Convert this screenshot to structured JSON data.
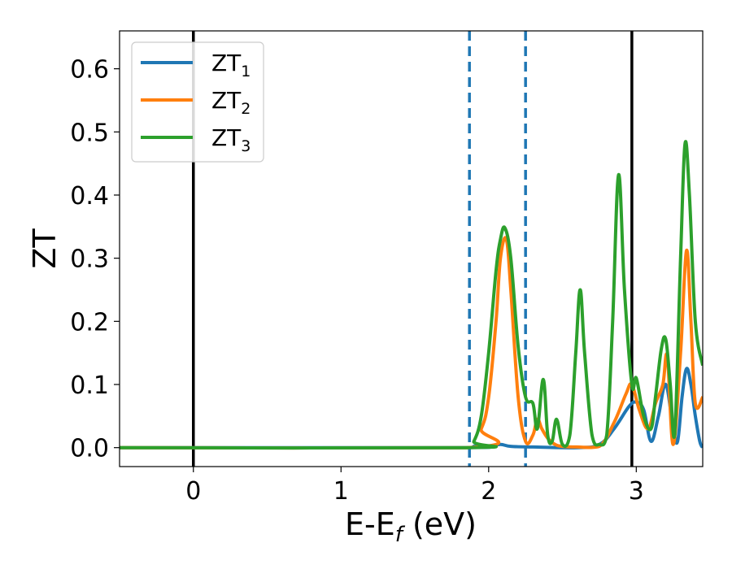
{
  "chart_data": {
    "type": "line",
    "title": "",
    "xlabel": {
      "main": "E-E",
      "sub": "f",
      "tail": " (eV)"
    },
    "ylabel": "ZT",
    "xlim": [
      -0.5,
      3.45
    ],
    "ylim": [
      -0.03,
      0.66
    ],
    "x_ticks": [
      0,
      1,
      2,
      3
    ],
    "y_ticks": [
      0.0,
      0.1,
      0.2,
      0.3,
      0.4,
      0.5,
      0.6
    ],
    "x_tick_labels": [
      "0",
      "1",
      "2",
      "3"
    ],
    "y_tick_labels": [
      "0.0",
      "0.1",
      "0.2",
      "0.3",
      "0.4",
      "0.5",
      "0.6"
    ],
    "grid": false,
    "legend_position": "top-left",
    "vlines": [
      {
        "x": 0.0,
        "style": "solid",
        "color": "#000000"
      },
      {
        "x": 1.87,
        "style": "dashed",
        "color": "#1f77b4"
      },
      {
        "x": 2.25,
        "style": "dashed",
        "color": "#1f77b4"
      },
      {
        "x": 2.97,
        "style": "solid",
        "color": "#000000"
      }
    ],
    "series": [
      {
        "name": "ZT",
        "sub": "1",
        "color": "#1f77b4",
        "x": [
          -0.5,
          1.8,
          1.9,
          2.0,
          2.08,
          2.15,
          2.3,
          2.6,
          2.75,
          2.85,
          2.95,
          3.0,
          3.05,
          3.1,
          3.15,
          3.2,
          3.25,
          3.28,
          3.31,
          3.34,
          3.37,
          3.4,
          3.43,
          3.45
        ],
        "y": [
          0.0,
          0.0,
          0.002,
          0.002,
          0.005,
          0.002,
          0.001,
          0.0,
          0.005,
          0.03,
          0.065,
          0.072,
          0.06,
          0.01,
          0.05,
          0.1,
          0.03,
          0.01,
          0.08,
          0.125,
          0.1,
          0.05,
          0.01,
          0.0
        ]
      },
      {
        "name": "ZT",
        "sub": "2",
        "color": "#ff7f0e",
        "x": [
          -0.5,
          1.85,
          1.95,
          2.0,
          2.05,
          2.08,
          2.12,
          2.15,
          2.2,
          2.25,
          2.3,
          2.33,
          2.36,
          2.4,
          2.45,
          2.5,
          2.6,
          2.75,
          2.85,
          2.93,
          2.97,
          3.02,
          3.08,
          3.13,
          3.18,
          3.21,
          3.25,
          3.3,
          3.34,
          3.37,
          3.4,
          3.45
        ],
        "y": [
          0.0,
          0.0,
          0.03,
          0.08,
          0.2,
          0.3,
          0.33,
          0.25,
          0.08,
          0.01,
          0.02,
          0.045,
          0.03,
          0.015,
          0.005,
          0.002,
          0.001,
          0.002,
          0.04,
          0.085,
          0.1,
          0.06,
          0.03,
          0.07,
          0.1,
          0.145,
          0.005,
          0.15,
          0.312,
          0.2,
          0.07,
          0.08
        ]
      },
      {
        "name": "ZT",
        "sub": "3",
        "color": "#2ca02c",
        "x": [
          -0.5,
          1.85,
          1.9,
          1.95,
          2.0,
          2.05,
          2.08,
          2.11,
          2.15,
          2.2,
          2.25,
          2.3,
          2.33,
          2.37,
          2.4,
          2.43,
          2.46,
          2.5,
          2.55,
          2.59,
          2.62,
          2.65,
          2.7,
          2.75,
          2.8,
          2.84,
          2.88,
          2.92,
          2.97,
          3.0,
          3.05,
          3.1,
          3.13,
          3.17,
          3.2,
          3.23,
          3.26,
          3.3,
          3.33,
          3.36,
          3.4,
          3.45
        ],
        "y": [
          0.0,
          0.0,
          0.01,
          0.05,
          0.15,
          0.28,
          0.33,
          0.348,
          0.3,
          0.16,
          0.08,
          0.07,
          0.03,
          0.108,
          0.02,
          0.01,
          0.045,
          0.005,
          0.02,
          0.15,
          0.25,
          0.15,
          0.02,
          0.005,
          0.02,
          0.2,
          0.432,
          0.25,
          0.1,
          0.11,
          0.05,
          0.03,
          0.08,
          0.157,
          0.171,
          0.1,
          0.02,
          0.3,
          0.481,
          0.4,
          0.2,
          0.13
        ]
      }
    ]
  }
}
